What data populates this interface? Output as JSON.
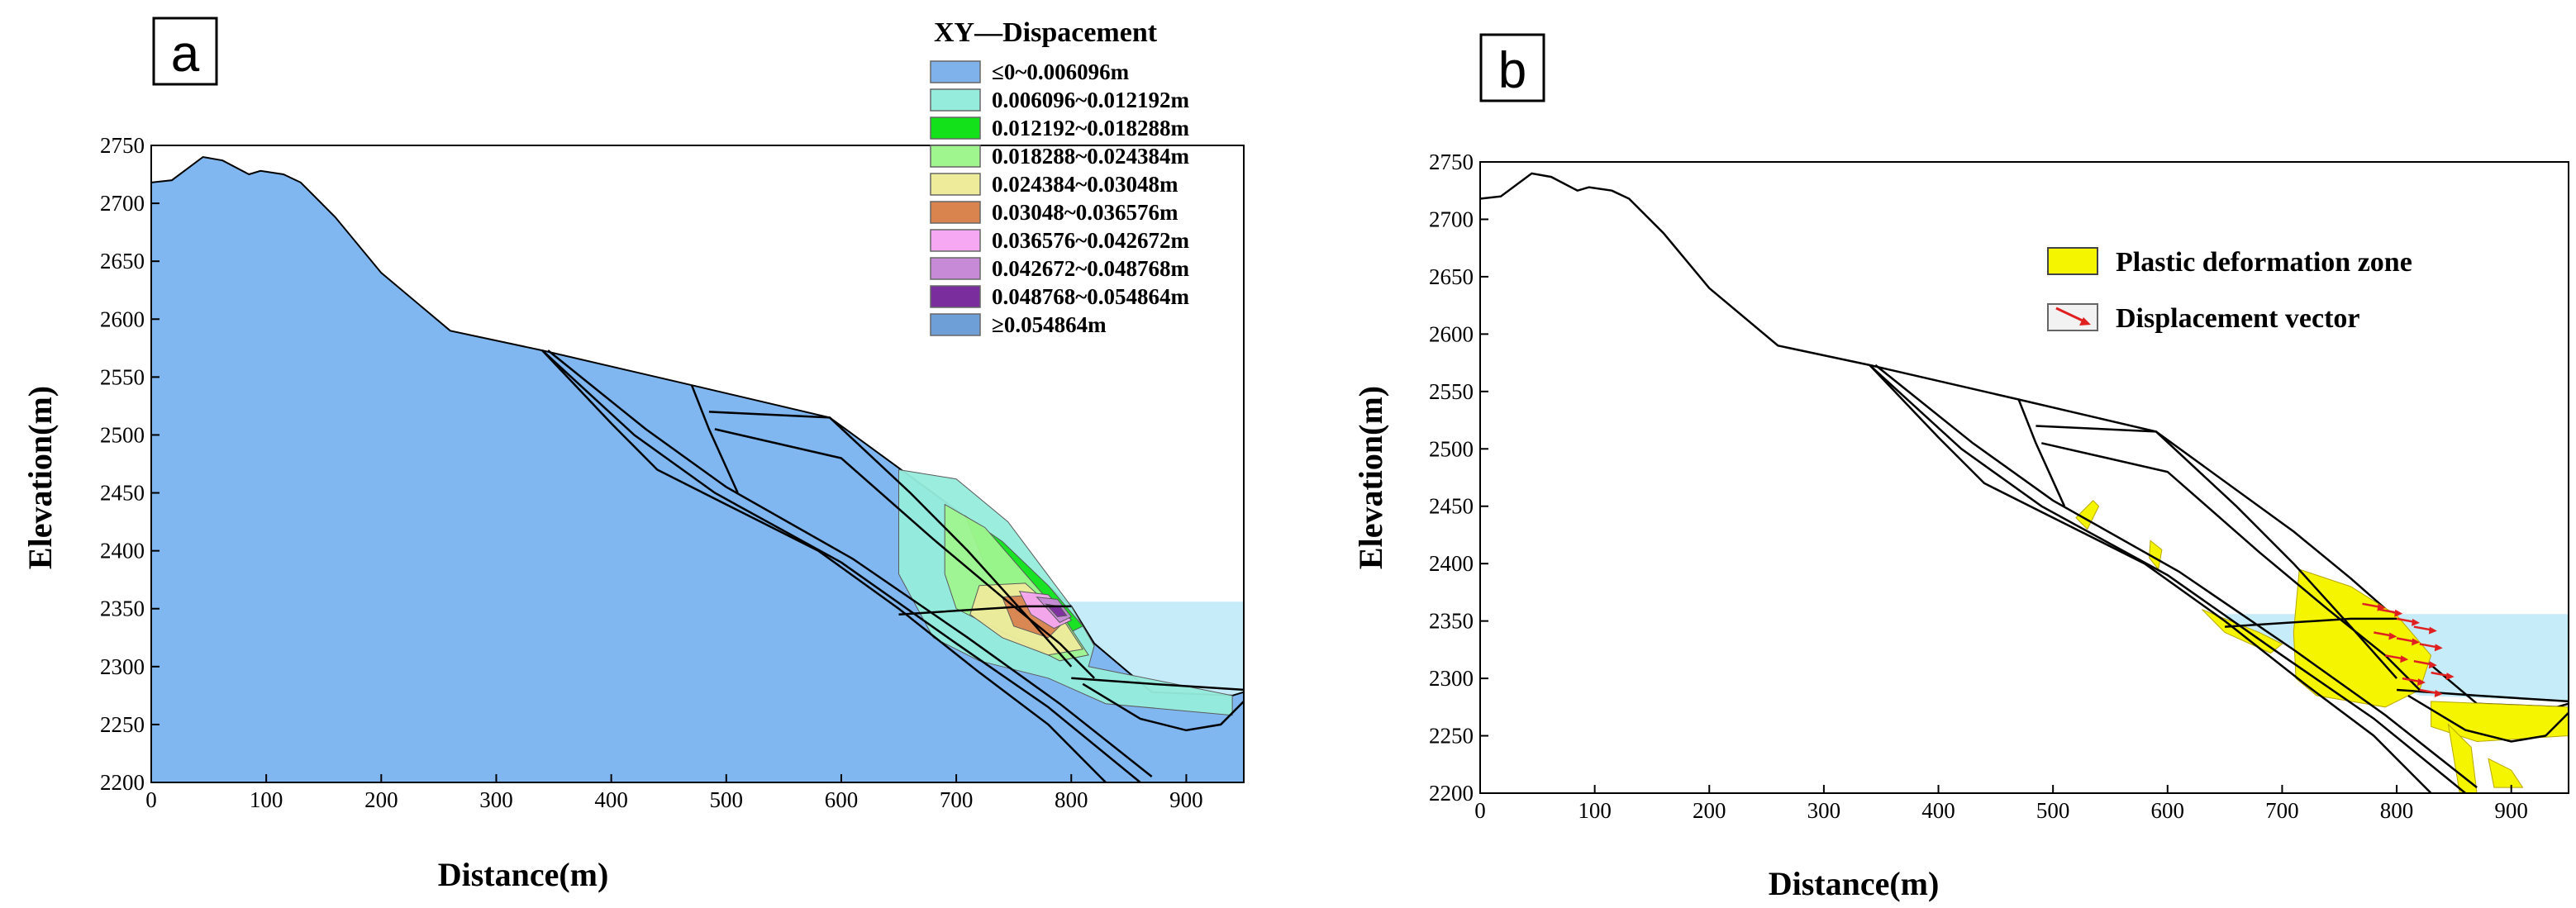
{
  "chart_data": [
    {
      "type": "area",
      "panel_label": "a",
      "title": "XY—Dispacement",
      "xlabel": "Distance(m)",
      "ylabel": "Elevation(m)",
      "xlim": [
        0,
        950
      ],
      "ylim": [
        2200,
        2750
      ],
      "xticks": [
        "0",
        "100",
        "200",
        "300",
        "400",
        "500",
        "600",
        "700",
        "800",
        "900"
      ],
      "yticks": [
        "2200",
        "2250",
        "2300",
        "2350",
        "2400",
        "2450",
        "2500",
        "2550",
        "2600",
        "2650",
        "2700",
        "2750"
      ],
      "legend": [
        {
          "label": "≤0~0.006096m",
          "color": "#7fb2ea"
        },
        {
          "label": "0.006096~0.012192m",
          "color": "#96ecdc"
        },
        {
          "label": "0.012192~0.018288m",
          "color": "#13e21a"
        },
        {
          "label": "0.018288~0.024384m",
          "color": "#9ff58e"
        },
        {
          "label": "0.024384~0.03048m",
          "color": "#eeeb9b"
        },
        {
          "label": "0.03048~0.036576m",
          "color": "#d9834f"
        },
        {
          "label": "0.036576~0.042672m",
          "color": "#f6a8f2"
        },
        {
          "label": "0.042672~0.048768m",
          "color": "#c68ad6"
        },
        {
          "label": "0.048768~0.054864m",
          "color": "#7a2d9c"
        },
        {
          "label": "≥0.054864m",
          "color": "#6f9fd7"
        }
      ],
      "surface_profile": {
        "x": [
          0,
          18,
          45,
          62,
          85,
          95,
          115,
          130,
          160,
          200,
          260,
          340,
          470,
          590,
          710,
          760,
          800,
          820,
          870,
          940,
          950
        ],
        "y": [
          2718,
          2720,
          2740,
          2737,
          2725,
          2728,
          2725,
          2718,
          2688,
          2640,
          2590,
          2573,
          2543,
          2515,
          2428,
          2387,
          2352,
          2320,
          2278,
          2275,
          2278
        ]
      },
      "reservoir_level": 2356
    },
    {
      "type": "area",
      "panel_label": "b",
      "xlabel": "Distance(m)",
      "ylabel": "Elevation(m)",
      "xlim": [
        0,
        950
      ],
      "ylim": [
        2200,
        2750
      ],
      "xticks": [
        "0",
        "100",
        "200",
        "300",
        "400",
        "500",
        "600",
        "700",
        "800",
        "900"
      ],
      "yticks": [
        "2200",
        "2250",
        "2300",
        "2350",
        "2400",
        "2450",
        "2500",
        "2550",
        "2600",
        "2650",
        "2700",
        "2750"
      ],
      "legend": [
        {
          "label": "Plastic deformation zone",
          "color": "#f5f500"
        },
        {
          "label": "Displacement vector",
          "color": "#e02020"
        }
      ],
      "surface_profile": {
        "x": [
          0,
          18,
          45,
          62,
          85,
          95,
          115,
          130,
          160,
          200,
          260,
          340,
          470,
          590,
          710,
          760,
          800,
          820,
          870,
          940,
          950
        ],
        "y": [
          2718,
          2720,
          2740,
          2737,
          2725,
          2728,
          2725,
          2718,
          2688,
          2640,
          2590,
          2573,
          2543,
          2515,
          2428,
          2387,
          2352,
          2320,
          2278,
          2275,
          2278
        ]
      },
      "reservoir_level": 2356
    }
  ]
}
